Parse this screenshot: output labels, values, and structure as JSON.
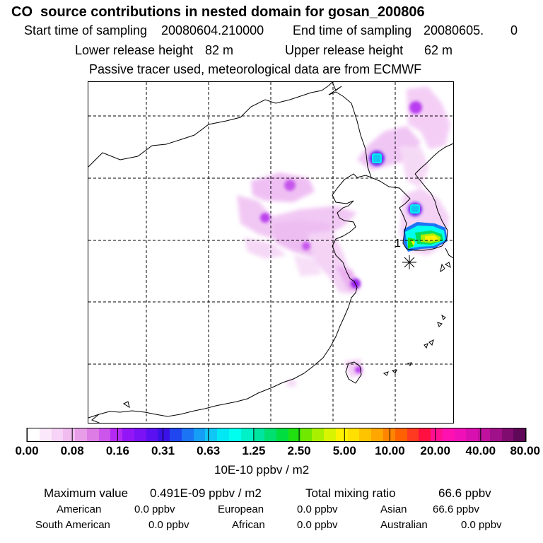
{
  "header": {
    "title": "CO  source contributions in nested domain for gosan_200806",
    "start_label": "Start time of sampling",
    "start_value": "20080604.210000",
    "end_label": "End time of sampling",
    "end_value": "20080605.",
    "end_suffix": "0",
    "lower_label": "Lower release height",
    "lower_value": "82 m",
    "upper_label": "Upper release height",
    "upper_value": "62 m",
    "note": "Passive tracer used, meteorological data are from ECMWF"
  },
  "map": {
    "receptor_label": "1"
  },
  "colorbar": {
    "tick_labels": [
      "0.00",
      "0.08",
      "0.16",
      "0.31",
      "0.63",
      "1.25",
      "2.50",
      "5.00",
      "10.00",
      "20.00",
      "40.00",
      "80.00"
    ],
    "units": "10E-10 ppbv / m2",
    "colors": [
      "#ffffff",
      "#fbe9fb",
      "#f7d3f7",
      "#f1bdf1",
      "#e89de9",
      "#dd7ce4",
      "#cc55ec",
      "#b52af2",
      "#9216f6",
      "#7a12f5",
      "#5a10f0",
      "#3a12e8",
      "#2046f0",
      "#1a74f4",
      "#159ef5",
      "#10c6f5",
      "#00e8f4",
      "#00ffee",
      "#00f0c8",
      "#00e6a0",
      "#00e070",
      "#00dd40",
      "#20e010",
      "#70e800",
      "#a8f000",
      "#d8f400",
      "#fff200",
      "#ffe000",
      "#ffc400",
      "#ffa600",
      "#ff8400",
      "#ff6000",
      "#ff3a20",
      "#ff1040",
      "#ff1090",
      "#ff10b0",
      "#f010b8",
      "#d810b0",
      "#c0109e",
      "#a01088",
      "#800c70",
      "#600858"
    ]
  },
  "stats": {
    "max_label": "Maximum value",
    "max_value": "0.491E-09 ppbv / m2",
    "total_label": "Total mixing ratio",
    "total_value": "66.6 ppbv",
    "american_label": "American",
    "american_value": "0.0 ppbv",
    "european_label": "European",
    "european_value": "0.0 ppbv",
    "asian_label": "Asian",
    "asian_value": "66.6 ppbv",
    "south_american_label": "South American",
    "south_american_value": "0.0 ppbv",
    "african_label": "African",
    "african_value": "0.0 ppbv",
    "australian_label": "Australian",
    "australian_value": "0.0 ppbv"
  }
}
